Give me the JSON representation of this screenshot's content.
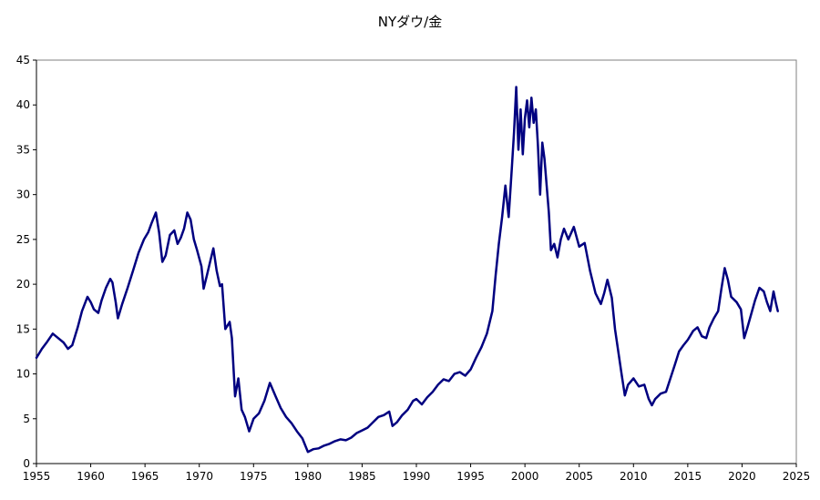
{
  "chart_data": {
    "type": "line",
    "title": "NYダウ/金",
    "xlabel": "",
    "ylabel": "",
    "xlim": [
      1955,
      2025
    ],
    "ylim": [
      0,
      45
    ],
    "x_ticks": [
      "1955",
      "1960",
      "1965",
      "1970",
      "1975",
      "1980",
      "1985",
      "1990",
      "1995",
      "2000",
      "2005",
      "2010",
      "2015",
      "2020",
      "2025"
    ],
    "y_ticks": [
      "0",
      "5",
      "10",
      "15",
      "20",
      "25",
      "30",
      "35",
      "40",
      "45"
    ],
    "grid": false,
    "legend": "none",
    "series": [
      {
        "color": "#000080",
        "points": [
          [
            1955.0,
            11.8
          ],
          [
            1955.5,
            12.8
          ],
          [
            1956.0,
            13.6
          ],
          [
            1956.5,
            14.5
          ],
          [
            1957.0,
            14.0
          ],
          [
            1957.5,
            13.5
          ],
          [
            1957.9,
            12.8
          ],
          [
            1958.3,
            13.2
          ],
          [
            1958.8,
            15.2
          ],
          [
            1959.2,
            17.0
          ],
          [
            1959.7,
            18.6
          ],
          [
            1960.0,
            18.0
          ],
          [
            1960.3,
            17.2
          ],
          [
            1960.7,
            16.8
          ],
          [
            1961.0,
            18.2
          ],
          [
            1961.4,
            19.6
          ],
          [
            1961.8,
            20.6
          ],
          [
            1962.0,
            20.2
          ],
          [
            1962.3,
            18.0
          ],
          [
            1962.5,
            16.2
          ],
          [
            1962.9,
            17.8
          ],
          [
            1963.4,
            19.6
          ],
          [
            1963.9,
            21.5
          ],
          [
            1964.4,
            23.5
          ],
          [
            1964.9,
            25.0
          ],
          [
            1965.3,
            25.8
          ],
          [
            1965.6,
            26.8
          ],
          [
            1966.0,
            28.0
          ],
          [
            1966.3,
            25.8
          ],
          [
            1966.6,
            22.5
          ],
          [
            1966.9,
            23.2
          ],
          [
            1967.3,
            25.5
          ],
          [
            1967.7,
            26.0
          ],
          [
            1968.0,
            24.5
          ],
          [
            1968.3,
            25.2
          ],
          [
            1968.6,
            26.2
          ],
          [
            1968.9,
            28.0
          ],
          [
            1969.2,
            27.2
          ],
          [
            1969.5,
            25.0
          ],
          [
            1969.8,
            23.8
          ],
          [
            1970.2,
            22.0
          ],
          [
            1970.4,
            19.5
          ],
          [
            1970.7,
            21.0
          ],
          [
            1971.0,
            22.5
          ],
          [
            1971.3,
            24.0
          ],
          [
            1971.6,
            21.5
          ],
          [
            1971.9,
            19.8
          ],
          [
            1972.1,
            20.0
          ],
          [
            1972.4,
            15.0
          ],
          [
            1972.8,
            15.8
          ],
          [
            1973.0,
            14.0
          ],
          [
            1973.3,
            7.5
          ],
          [
            1973.6,
            9.5
          ],
          [
            1973.9,
            6.0
          ],
          [
            1974.2,
            5.2
          ],
          [
            1974.6,
            3.6
          ],
          [
            1975.0,
            5.0
          ],
          [
            1975.5,
            5.6
          ],
          [
            1976.0,
            7.0
          ],
          [
            1976.5,
            9.0
          ],
          [
            1977.0,
            7.6
          ],
          [
            1977.5,
            6.2
          ],
          [
            1978.0,
            5.2
          ],
          [
            1978.5,
            4.5
          ],
          [
            1979.0,
            3.6
          ],
          [
            1979.5,
            2.8
          ],
          [
            1980.0,
            1.3
          ],
          [
            1980.5,
            1.6
          ],
          [
            1981.0,
            1.7
          ],
          [
            1981.5,
            2.0
          ],
          [
            1982.0,
            2.2
          ],
          [
            1982.5,
            2.5
          ],
          [
            1983.0,
            2.7
          ],
          [
            1983.5,
            2.6
          ],
          [
            1984.0,
            2.9
          ],
          [
            1984.5,
            3.4
          ],
          [
            1985.0,
            3.7
          ],
          [
            1985.5,
            4.0
          ],
          [
            1986.0,
            4.6
          ],
          [
            1986.5,
            5.2
          ],
          [
            1987.0,
            5.4
          ],
          [
            1987.5,
            5.8
          ],
          [
            1987.8,
            4.2
          ],
          [
            1988.2,
            4.6
          ],
          [
            1988.7,
            5.4
          ],
          [
            1989.2,
            6.0
          ],
          [
            1989.7,
            7.0
          ],
          [
            1990.0,
            7.2
          ],
          [
            1990.5,
            6.6
          ],
          [
            1991.0,
            7.4
          ],
          [
            1991.5,
            8.0
          ],
          [
            1992.0,
            8.8
          ],
          [
            1992.5,
            9.4
          ],
          [
            1993.0,
            9.2
          ],
          [
            1993.5,
            10.0
          ],
          [
            1994.0,
            10.2
          ],
          [
            1994.5,
            9.8
          ],
          [
            1995.0,
            10.5
          ],
          [
            1995.5,
            11.8
          ],
          [
            1996.0,
            13.0
          ],
          [
            1996.5,
            14.5
          ],
          [
            1997.0,
            17.0
          ],
          [
            1997.3,
            21.0
          ],
          [
            1997.6,
            24.5
          ],
          [
            1997.9,
            27.5
          ],
          [
            1998.2,
            31.0
          ],
          [
            1998.5,
            27.5
          ],
          [
            1998.8,
            33.0
          ],
          [
            1999.0,
            37.0
          ],
          [
            1999.2,
            42.0
          ],
          [
            1999.4,
            35.0
          ],
          [
            1999.6,
            39.5
          ],
          [
            1999.8,
            34.5
          ],
          [
            2000.0,
            38.5
          ],
          [
            2000.2,
            40.5
          ],
          [
            2000.4,
            37.5
          ],
          [
            2000.6,
            40.8
          ],
          [
            2000.8,
            38.0
          ],
          [
            2001.0,
            39.5
          ],
          [
            2001.2,
            35.5
          ],
          [
            2001.4,
            30.0
          ],
          [
            2001.6,
            35.8
          ],
          [
            2001.8,
            34.0
          ],
          [
            2002.0,
            31.0
          ],
          [
            2002.2,
            28.0
          ],
          [
            2002.4,
            23.8
          ],
          [
            2002.7,
            24.5
          ],
          [
            2003.0,
            23.0
          ],
          [
            2003.3,
            25.0
          ],
          [
            2003.6,
            26.2
          ],
          [
            2004.0,
            25.0
          ],
          [
            2004.5,
            26.4
          ],
          [
            2005.0,
            24.2
          ],
          [
            2005.5,
            24.6
          ],
          [
            2006.0,
            21.5
          ],
          [
            2006.5,
            19.0
          ],
          [
            2007.0,
            17.8
          ],
          [
            2007.3,
            19.0
          ],
          [
            2007.6,
            20.5
          ],
          [
            2008.0,
            18.5
          ],
          [
            2008.3,
            15.0
          ],
          [
            2008.6,
            12.5
          ],
          [
            2008.9,
            10.0
          ],
          [
            2009.2,
            7.6
          ],
          [
            2009.5,
            8.8
          ],
          [
            2010.0,
            9.5
          ],
          [
            2010.5,
            8.6
          ],
          [
            2011.0,
            8.8
          ],
          [
            2011.4,
            7.2
          ],
          [
            2011.7,
            6.5
          ],
          [
            2012.0,
            7.2
          ],
          [
            2012.5,
            7.8
          ],
          [
            2013.0,
            8.0
          ],
          [
            2013.4,
            9.5
          ],
          [
            2013.8,
            11.0
          ],
          [
            2014.2,
            12.5
          ],
          [
            2014.6,
            13.2
          ],
          [
            2015.0,
            13.8
          ],
          [
            2015.5,
            14.8
          ],
          [
            2015.9,
            15.2
          ],
          [
            2016.3,
            14.2
          ],
          [
            2016.7,
            14.0
          ],
          [
            2017.0,
            15.2
          ],
          [
            2017.4,
            16.2
          ],
          [
            2017.8,
            17.0
          ],
          [
            2018.1,
            19.5
          ],
          [
            2018.4,
            21.8
          ],
          [
            2018.7,
            20.5
          ],
          [
            2019.0,
            18.6
          ],
          [
            2019.5,
            18.0
          ],
          [
            2019.9,
            17.2
          ],
          [
            2020.2,
            14.0
          ],
          [
            2020.5,
            15.2
          ],
          [
            2020.8,
            16.5
          ],
          [
            2021.2,
            18.2
          ],
          [
            2021.6,
            19.6
          ],
          [
            2022.0,
            19.2
          ],
          [
            2022.3,
            18.0
          ],
          [
            2022.6,
            17.0
          ],
          [
            2022.9,
            19.2
          ],
          [
            2023.1,
            18.0
          ],
          [
            2023.3,
            17.0
          ]
        ]
      }
    ]
  }
}
